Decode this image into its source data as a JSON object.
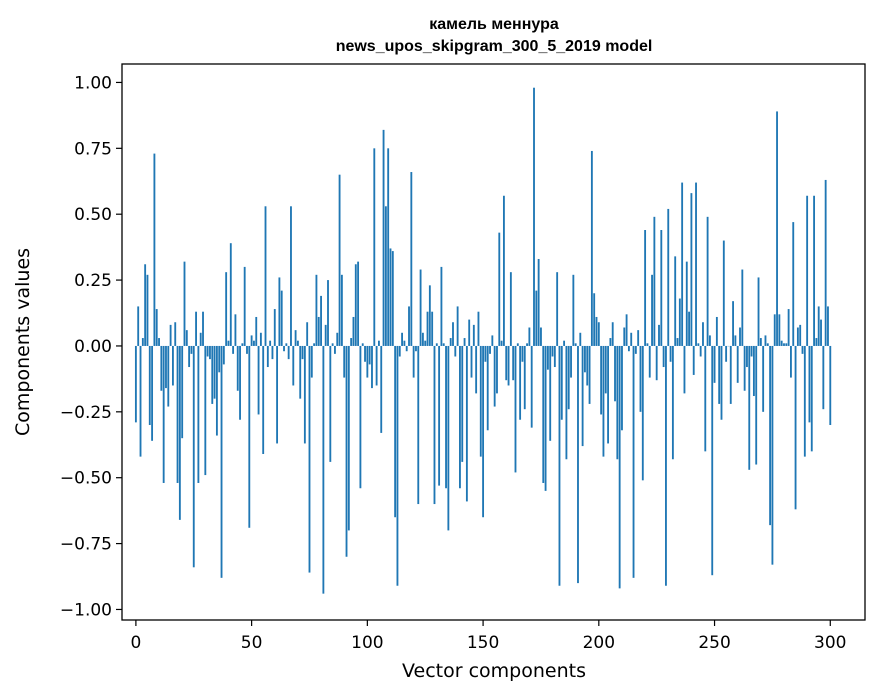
{
  "chart_data": {
    "type": "bar",
    "title_line1": "камель меннура",
    "title_line2": "news_upos_skipgram_300_5_2019 model",
    "xlabel": "Vector components",
    "ylabel": "Components values",
    "xlim": [
      -6,
      315
    ],
    "ylim": [
      -1.04,
      1.07
    ],
    "xticks": [
      0,
      50,
      100,
      150,
      200,
      250,
      300
    ],
    "yticks": [
      -1.0,
      -0.75,
      -0.5,
      -0.25,
      0.0,
      0.25,
      0.5,
      0.75,
      1.0
    ],
    "ytick_labels": [
      "−1.00",
      "−0.75",
      "−0.50",
      "−0.25",
      "0.00",
      "0.25",
      "0.50",
      "0.75",
      "1.00"
    ],
    "bar_color": "#1f77b4",
    "grid": false,
    "values": [
      -0.29,
      0.15,
      -0.42,
      0.03,
      0.31,
      0.27,
      -0.3,
      -0.36,
      0.73,
      0.14,
      0.03,
      -0.17,
      -0.52,
      -0.16,
      -0.23,
      0.08,
      -0.15,
      0.09,
      -0.52,
      -0.66,
      -0.35,
      0.32,
      0.06,
      -0.08,
      -0.03,
      -0.84,
      0.13,
      -0.52,
      0.05,
      0.13,
      -0.49,
      -0.04,
      -0.05,
      -0.22,
      -0.2,
      -0.34,
      -0.1,
      -0.88,
      -0.07,
      0.28,
      0.02,
      0.39,
      -0.03,
      0.12,
      -0.17,
      -0.28,
      0.01,
      0.3,
      -0.03,
      -0.69,
      0.04,
      0.02,
      0.11,
      -0.26,
      0.05,
      -0.41,
      0.53,
      -0.08,
      0.02,
      -0.05,
      0.14,
      -0.37,
      0.26,
      0.21,
      -0.02,
      0.01,
      -0.05,
      0.53,
      -0.15,
      0.06,
      0.02,
      -0.2,
      -0.05,
      -0.37,
      0.09,
      -0.86,
      -0.12,
      0.01,
      0.27,
      0.11,
      0.19,
      -0.94,
      0.08,
      0.25,
      -0.44,
      0.01,
      -0.03,
      0.05,
      0.65,
      0.27,
      -0.12,
      -0.8,
      -0.7,
      0.03,
      0.11,
      0.31,
      0.32,
      -0.54,
      0.01,
      -0.06,
      -0.12,
      -0.07,
      -0.16,
      0.75,
      -0.15,
      0.02,
      -0.33,
      0.82,
      0.53,
      0.75,
      0.37,
      0.36,
      -0.65,
      -0.91,
      -0.04,
      0.05,
      0.02,
      -0.02,
      0.15,
      0.66,
      -0.12,
      -0.02,
      -0.6,
      0.29,
      0.05,
      0.02,
      0.13,
      0.23,
      0.13,
      -0.6,
      0.01,
      -0.53,
      0.3,
      0.01,
      -0.54,
      -0.7,
      0.03,
      0.09,
      -0.04,
      0.15,
      -0.54,
      -0.44,
      0.03,
      -0.59,
      0.1,
      -0.12,
      0.08,
      -0.18,
      0.13,
      -0.42,
      -0.65,
      -0.06,
      -0.32,
      -0.03,
      0.04,
      -0.23,
      -0.18,
      0.43,
      0.02,
      0.57,
      -0.13,
      -0.15,
      0.28,
      -0.13,
      -0.48,
      0.01,
      -0.28,
      -0.06,
      -0.24,
      0.01,
      0.07,
      -0.31,
      0.98,
      0.21,
      0.33,
      0.07,
      -0.52,
      -0.55,
      -0.09,
      -0.36,
      -0.04,
      -0.08,
      0.28,
      -0.91,
      -0.28,
      0.02,
      -0.43,
      -0.24,
      -0.12,
      0.27,
      0.01,
      -0.9,
      0.05,
      -0.38,
      -0.1,
      -0.15,
      -0.22,
      0.74,
      0.2,
      0.11,
      0.09,
      -0.26,
      -0.42,
      -0.18,
      -0.37,
      0.03,
      0.09,
      -0.21,
      -0.43,
      -0.92,
      -0.32,
      0.07,
      0.12,
      -0.02,
      0.05,
      -0.88,
      -0.03,
      0.06,
      -0.25,
      -0.51,
      0.44,
      0.01,
      -0.12,
      0.27,
      0.49,
      -0.13,
      0.08,
      0.44,
      -0.08,
      -0.91,
      0.52,
      -0.06,
      -0.43,
      0.34,
      0.03,
      0.18,
      0.62,
      -0.18,
      0.32,
      0.13,
      0.58,
      -0.11,
      0.62,
      0.01,
      -0.04,
      0.09,
      -0.4,
      0.49,
      0.04,
      -0.87,
      -0.14,
      0.11,
      -0.22,
      -0.28,
      0.4,
      -0.06,
      0.0,
      -0.22,
      0.17,
      0.04,
      -0.14,
      0.07,
      0.29,
      -0.17,
      -0.08,
      -0.47,
      -0.04,
      -0.19,
      -0.45,
      0.26,
      0.03,
      -0.25,
      0.04,
      0.01,
      -0.68,
      -0.83,
      0.12,
      0.89,
      0.12,
      0.02,
      0.01,
      0.01,
      0.14,
      -0.12,
      0.47,
      -0.62,
      0.07,
      0.08,
      -0.03,
      -0.42,
      0.57,
      -0.29,
      -0.4,
      0.57,
      0.03,
      0.15,
      0.1,
      -0.24,
      0.63,
      0.15,
      -0.3
    ]
  }
}
